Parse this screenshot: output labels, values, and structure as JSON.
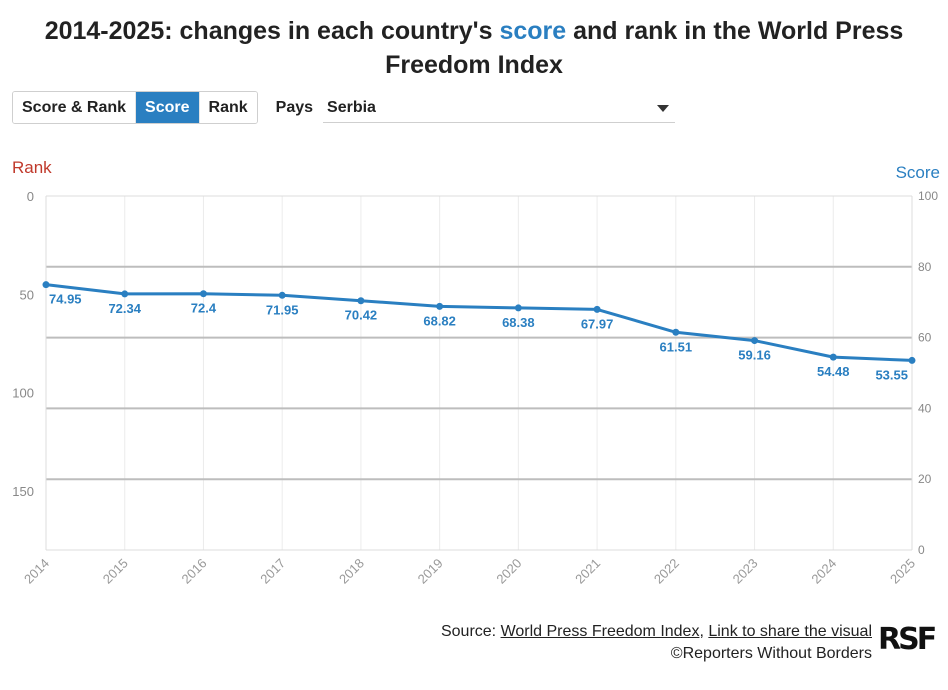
{
  "title": {
    "before": "2014-2025: changes in each country's ",
    "highlight": "score",
    "after": " and rank in the World Press Freedom Index"
  },
  "controls": {
    "tabs": [
      {
        "label": "Score & Rank",
        "active": false
      },
      {
        "label": "Score",
        "active": true
      },
      {
        "label": "Rank",
        "active": false
      }
    ],
    "country_label": "Pays",
    "country_value": "Serbia"
  },
  "colors": {
    "score": "#2a7fc1",
    "rank": "#c0392b",
    "grid": "#bdbdbd"
  },
  "chart_data": {
    "type": "line",
    "x": [
      "2014",
      "2015",
      "2016",
      "2017",
      "2018",
      "2019",
      "2020",
      "2021",
      "2022",
      "2023",
      "2024",
      "2025"
    ],
    "series": [
      {
        "name": "Score",
        "values": [
          74.95,
          72.34,
          72.4,
          71.95,
          70.42,
          68.82,
          68.38,
          67.97,
          61.51,
          59.16,
          54.48,
          53.55
        ]
      }
    ],
    "left_axis": {
      "label": "Rank",
      "ticks": [
        "0",
        "50",
        "100",
        "150"
      ],
      "range": [
        0,
        180
      ]
    },
    "right_axis": {
      "label": "Score",
      "ticks": [
        "0",
        "20",
        "40",
        "60",
        "80",
        "100"
      ],
      "range": [
        0,
        100
      ]
    },
    "grid": true
  },
  "footer": {
    "source_prefix": "Source: ",
    "link1": "World Press Freedom Index",
    "separator": ", ",
    "link2": "Link to share the visual",
    "credit": "©Reporters Without Borders",
    "logo_text": "RSF"
  }
}
